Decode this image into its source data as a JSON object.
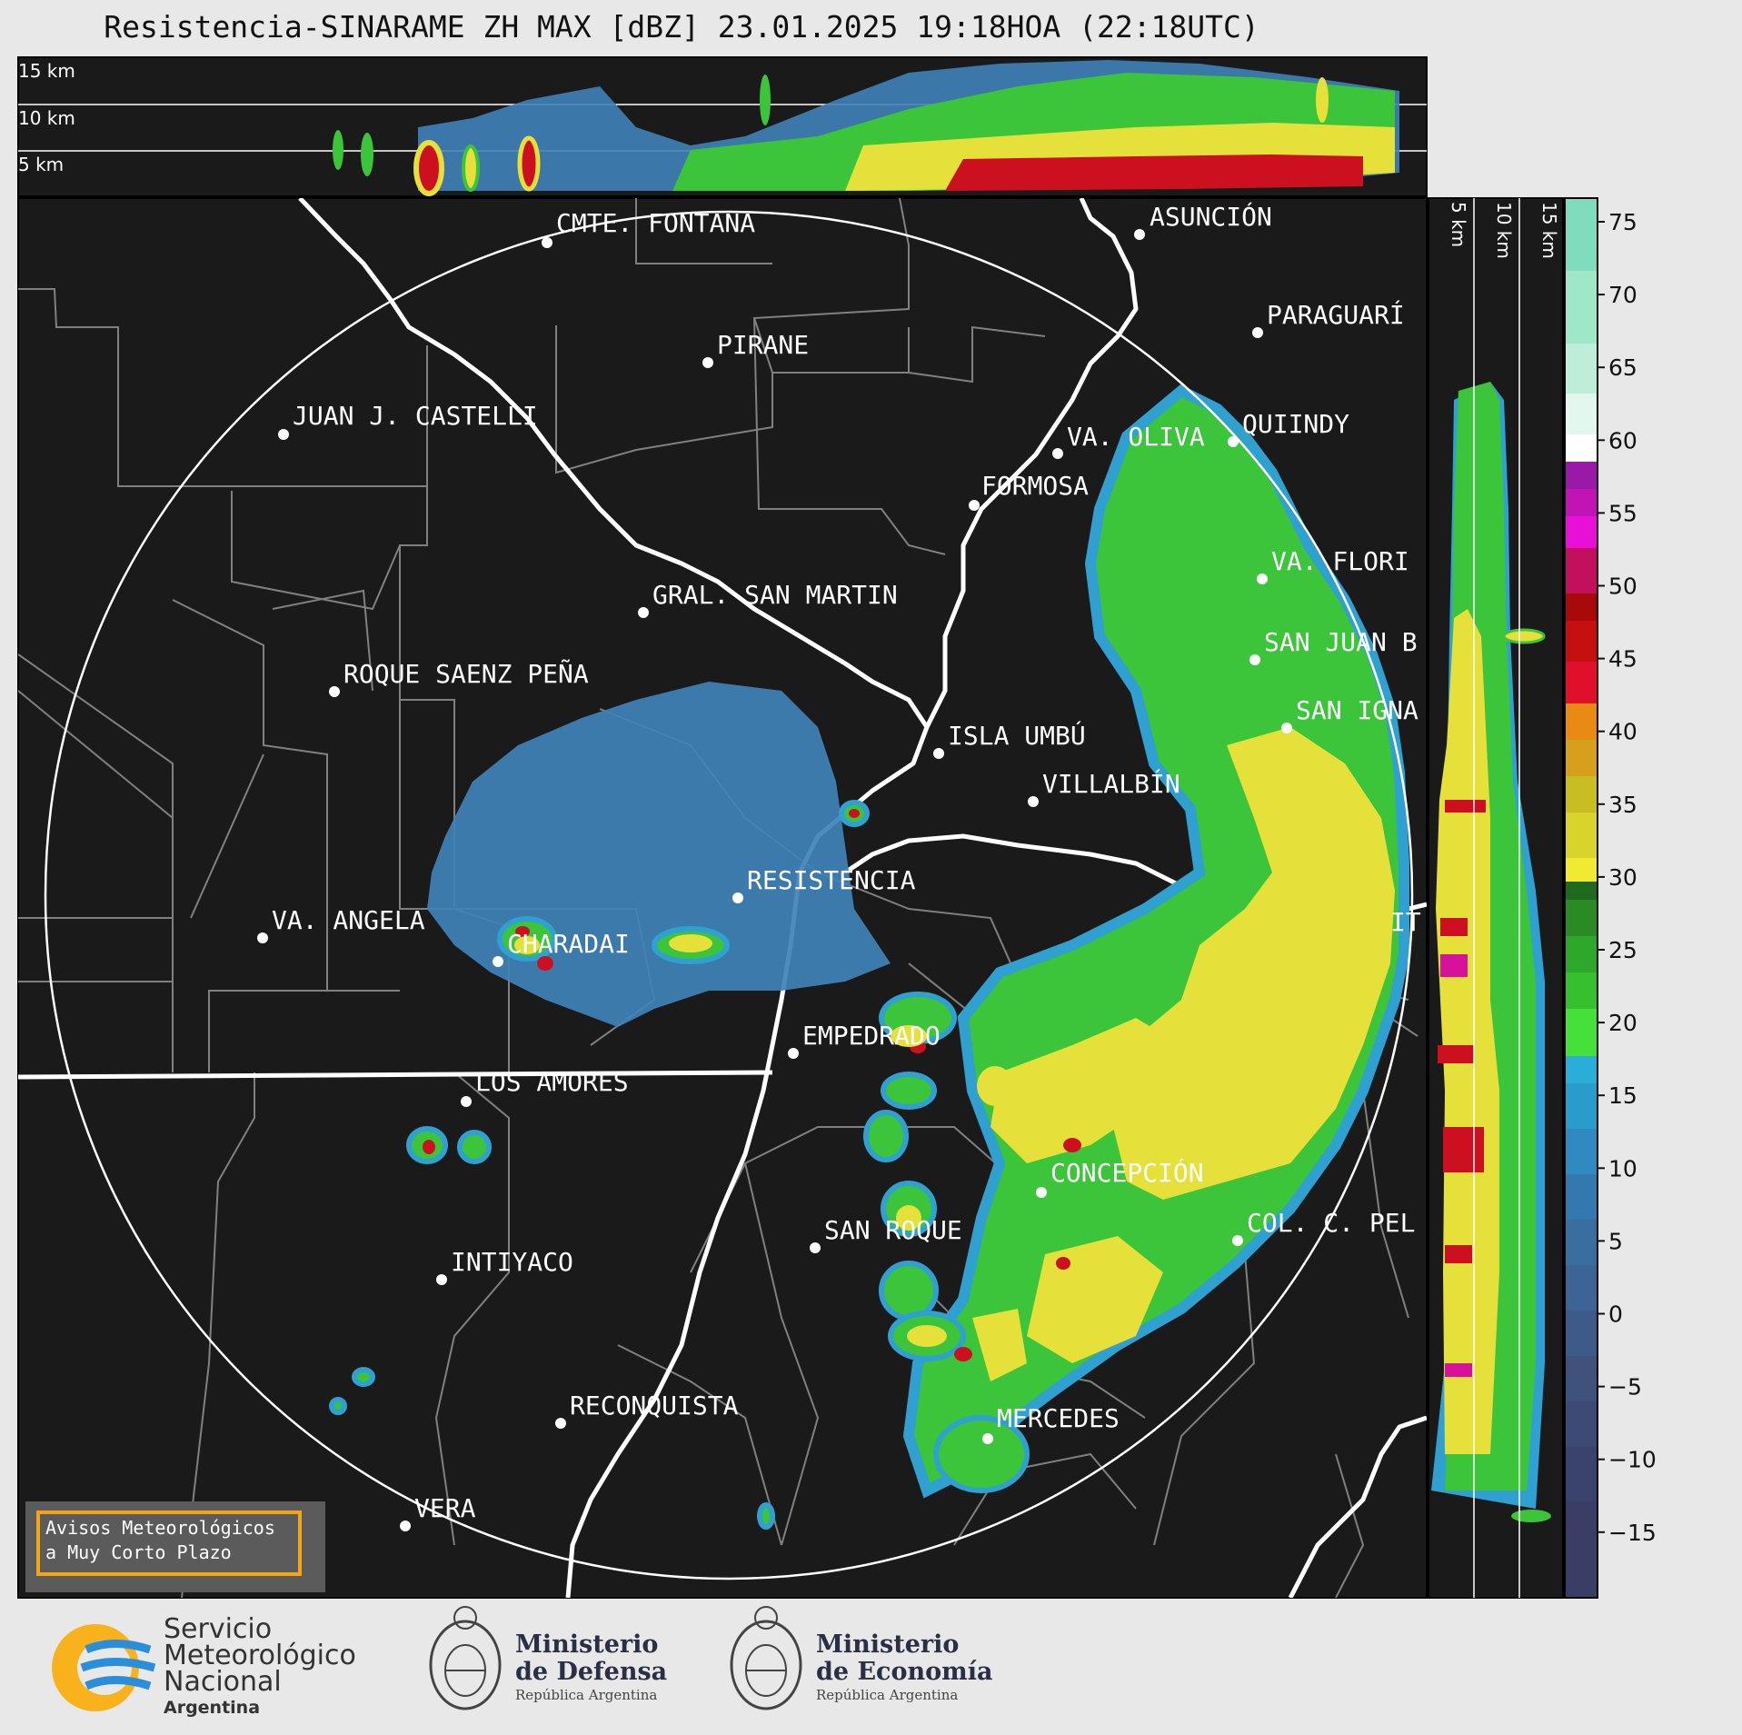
{
  "title": "Resistencia-SINARAME ZH MAX [dBZ] 23.01.2025 19:18HOA (22:18UTC)",
  "top_panel": {
    "km_labels": [
      "15 km",
      "10 km",
      "5 km"
    ]
  },
  "side_panel": {
    "km_labels": [
      "5 km",
      "10 km",
      "15 km"
    ]
  },
  "cities": [
    {
      "name": "CMTE. FONTANA"
    },
    {
      "name": "ASUNCIÓN"
    },
    {
      "name": "PARAGUARÍ"
    },
    {
      "name": "PIRANE"
    },
    {
      "name": "JUAN J. CASTELLI"
    },
    {
      "name": "VA. OLIVA"
    },
    {
      "name": "QUIINDY"
    },
    {
      "name": "FORMOSA"
    },
    {
      "name": "VA. FLORI"
    },
    {
      "name": "GRAL. SAN MARTIN"
    },
    {
      "name": "SAN JUAN B"
    },
    {
      "name": "ROQUE SAENZ PEÑA"
    },
    {
      "name": "SAN IGNA"
    },
    {
      "name": "ISLA UMBÚ"
    },
    {
      "name": "VILLALBÍN"
    },
    {
      "name": "RESISTENCIA"
    },
    {
      "name": "VA. ANGELA"
    },
    {
      "name": "CHARADAI"
    },
    {
      "name": "IT"
    },
    {
      "name": "EMPEDRADO"
    },
    {
      "name": "LOS AMORES"
    },
    {
      "name": "CONCEPCIÓN"
    },
    {
      "name": "SAN ROQUE"
    },
    {
      "name": "COL. C. PEL"
    },
    {
      "name": "INTIYACO"
    },
    {
      "name": "RECONQUISTA"
    },
    {
      "name": "MERCEDES"
    },
    {
      "name": "VERA"
    }
  ],
  "colorbar": {
    "ticks": [
      "75",
      "70",
      "65",
      "60",
      "55",
      "50",
      "45",
      "40",
      "35",
      "30",
      "25",
      "20",
      "15",
      "10",
      "5",
      "0",
      "−5",
      "−10",
      "−15"
    ]
  },
  "warning_box": {
    "line1": "Avisos Meteorológicos",
    "line2": "a Muy Corto Plazo"
  },
  "logos": {
    "smn": {
      "line1": "Servicio",
      "line2": "Meteorológico",
      "line3": "Nacional",
      "country": "Argentina"
    },
    "defensa": {
      "line1": "Ministerio",
      "line2": "de Defensa",
      "sub": "República Argentina"
    },
    "economia": {
      "line1": "Ministerio",
      "line2": "de Economía",
      "sub": "República Argentina"
    }
  },
  "colors": {
    "map_bg": "#1a1a1a",
    "light_blue": "#3f82b8",
    "green": "#3cc43a",
    "yellow": "#e6e03a",
    "red": "#cc1020",
    "magenta": "#d6129a",
    "orange_box": "#f2a516"
  }
}
